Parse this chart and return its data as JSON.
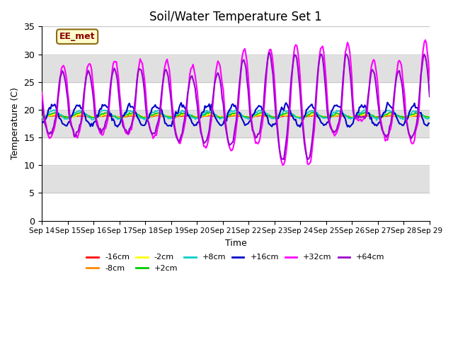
{
  "title": "Soil/Water Temperature Set 1",
  "xlabel": "Time",
  "ylabel": "Temperature (C)",
  "ylim": [
    0,
    35
  ],
  "background_color": "#ffffff",
  "annotation_text": "EE_met",
  "legend_entries": [
    "-16cm",
    "-8cm",
    "-2cm",
    "+2cm",
    "+8cm",
    "+16cm",
    "+32cm",
    "+64cm"
  ],
  "legend_colors": [
    "#ff0000",
    "#ff8800",
    "#ffff00",
    "#00cc00",
    "#00cccc",
    "#0000cc",
    "#ff00ff",
    "#9900cc"
  ],
  "x_tick_labels": [
    "Sep 14",
    "Sep 15",
    "Sep 16",
    "Sep 17",
    "Sep 18",
    "Sep 19",
    "Sep 20",
    "Sep 21",
    "Sep 22",
    "Sep 23",
    "Sep 24",
    "Sep 25",
    "Sep 26",
    "Sep 27",
    "Sep 28",
    "Sep 29"
  ],
  "n_days": 15,
  "grid_color": "#e0e0e0",
  "band_color": "#e8e8e8",
  "amps_up_32": [
    9,
    9.5,
    10,
    10,
    10,
    9,
    9.5,
    12,
    12,
    13,
    12.5,
    13,
    10,
    10,
    13.5
  ],
  "amps_dn_32": [
    4,
    4,
    3.5,
    3.5,
    4,
    5,
    6,
    6.5,
    5,
    9,
    9,
    3.5,
    1,
    4.5,
    5
  ],
  "amps_up_64": [
    8,
    8,
    8.5,
    8.5,
    8,
    7,
    7.5,
    10,
    11,
    11,
    11,
    11,
    8,
    8,
    11
  ],
  "amps_dn_64": [
    3.5,
    3.5,
    3,
    3,
    3.5,
    4.5,
    5,
    5.5,
    4,
    8,
    8,
    3,
    0.5,
    4,
    4
  ]
}
